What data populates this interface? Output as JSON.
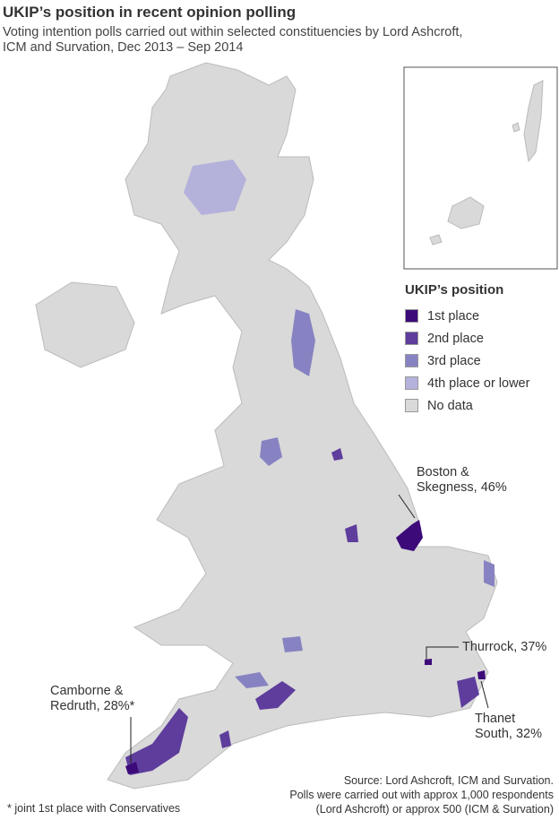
{
  "title": "UKIP’s position in recent opinion polling",
  "subtitle_line1": "Voting intention polls carried out within selected constituencies by Lord Ashcroft,",
  "subtitle_line2": "ICM and Survation, Dec 2013 – Sep 2014",
  "legend": {
    "title": "UKIP’s position",
    "items": [
      {
        "label": "1st place",
        "color": "#3d0a7a"
      },
      {
        "label": "2nd place",
        "color": "#5e3d9c"
      },
      {
        "label": "3rd place",
        "color": "#8783c2"
      },
      {
        "label": "4th place or lower",
        "color": "#b4b2db"
      },
      {
        "label": "No data",
        "color": "#d9d9d9"
      }
    ]
  },
  "annotations": {
    "boston_1": "Boston &",
    "boston_2": "Skegness, 46%",
    "thurrock": "Thurrock, 37%",
    "thanet_1": "Thanet",
    "thanet_2": "South, 32%",
    "camborne_1": "Camborne &",
    "camborne_2": "Redruth, 28%*"
  },
  "source_line1": "Source: Lord Ashcroft, ICM and Survation.",
  "source_line2": "Polls were carried out with approx 1,000 respondents",
  "source_line3": "(Lord Ashcroft) or approx 500 (ICM & Survation)",
  "footnote": "* joint 1st place with Conservatives"
}
